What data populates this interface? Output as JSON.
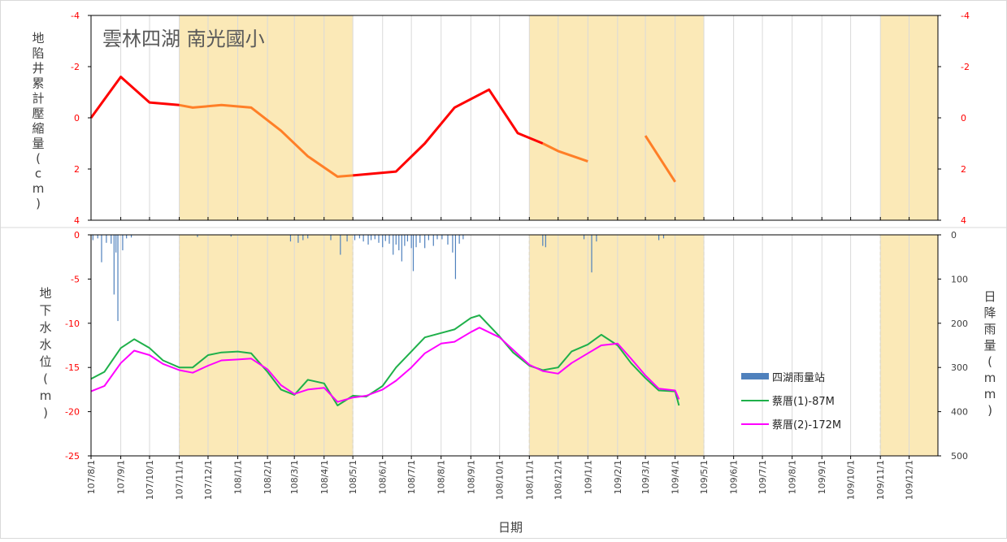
{
  "colors": {
    "shade": "#fbe9b7",
    "grid": "#d9d9d9",
    "axis": "#000000",
    "red_tick": "#ff0000",
    "subsidence_red": "#ff0000",
    "subsidence_orange": "#ff7f27",
    "rain": "#4f81bd",
    "well1": "#1fb04a",
    "well2": "#ff00ff"
  },
  "chart_data": [
    {
      "type": "line",
      "title": "雲林四湖 南光國小",
      "ylabel": "地陷井累計壓縮量(cm)",
      "ylim": [
        4,
        -4
      ],
      "yticks": [
        "-4",
        "-2",
        "0",
        "2",
        "4"
      ],
      "y2ticks": [
        "-4",
        "-2",
        "0",
        "2",
        "4"
      ],
      "shaded_periods": [
        [
          "107/11/1",
          "108/5/1"
        ],
        [
          "108/11/1",
          "109/5/1"
        ],
        [
          "109/11/1",
          "109/12/31"
        ]
      ],
      "series": [
        {
          "color": "red",
          "segments": [
            [
              [
                "107/8/1",
                0.0
              ],
              [
                "107/9/1",
                -1.6
              ],
              [
                "107/10/1",
                -0.6
              ],
              [
                "107/11/1",
                -0.5
              ]
            ],
            [
              [
                "108/5/1",
                2.25
              ],
              [
                "108/6/15",
                2.1
              ],
              [
                "108/7/15",
                1.0
              ],
              [
                "108/8/15",
                -0.4
              ],
              [
                "108/9/20",
                -1.1
              ],
              [
                "108/10/20",
                0.6
              ],
              [
                "108/11/15",
                1.0
              ]
            ]
          ]
        },
        {
          "color": "orange",
          "segments": [
            [
              [
                "107/11/1",
                -0.5
              ],
              [
                "107/11/15",
                -0.4
              ],
              [
                "107/12/15",
                -0.5
              ],
              [
                "108/1/15",
                -0.4
              ],
              [
                "108/2/15",
                0.5
              ],
              [
                "108/3/15",
                1.5
              ],
              [
                "108/4/15",
                2.3
              ],
              [
                "108/5/1",
                2.25
              ]
            ],
            [
              [
                "108/11/15",
                1.0
              ],
              [
                "108/12/1",
                1.3
              ],
              [
                "109/1/1",
                1.7
              ]
            ],
            [
              [
                "109/3/1",
                0.7
              ],
              [
                "109/4/1",
                2.5
              ]
            ]
          ]
        }
      ]
    },
    {
      "type": "line",
      "xlabel": "日期",
      "ylabel": "地下水水位(m)",
      "y2label": "日降雨量(mm)",
      "ylim": [
        -25,
        0
      ],
      "y2lim": [
        0,
        500
      ],
      "yticks": [
        "0",
        "-5",
        "-10",
        "-15",
        "-20",
        "-25"
      ],
      "y2ticks": [
        "0",
        "100",
        "200",
        "300",
        "400",
        "500"
      ],
      "x_ticks": [
        "107/8/1",
        "107/9/1",
        "107/10/1",
        "107/11/1",
        "107/12/1",
        "108/1/1",
        "108/2/1",
        "108/3/1",
        "108/4/1",
        "108/5/1",
        "108/6/1",
        "108/7/1",
        "108/8/1",
        "108/9/1",
        "108/10/1",
        "108/11/1",
        "108/12/1",
        "109/1/1",
        "109/2/1",
        "109/3/1",
        "109/4/1",
        "109/5/1",
        "109/6/1",
        "109/7/1",
        "109/8/1",
        "109/9/1",
        "109/10/1",
        "109/11/1",
        "109/12/1"
      ],
      "legend": {
        "placement": "right",
        "entries": [
          "四湖雨量站",
          "蔡厝(1)-87M",
          "蔡厝(2)-172M"
        ]
      },
      "series": [
        {
          "name": "四湖雨量站",
          "kind": "bar",
          "axis": "right",
          "points": [
            [
              "107/8/3",
              12
            ],
            [
              "107/8/8",
              8
            ],
            [
              "107/8/12",
              62
            ],
            [
              "107/8/17",
              18
            ],
            [
              "107/8/22",
              20
            ],
            [
              "107/8/25",
              135
            ],
            [
              "107/8/27",
              40
            ],
            [
              "107/8/29",
              195
            ],
            [
              "107/9/3",
              35
            ],
            [
              "107/9/7",
              8
            ],
            [
              "107/9/12",
              6
            ],
            [
              "107/11/20",
              5
            ],
            [
              "107/12/25",
              4
            ],
            [
              "108/2/25",
              15
            ],
            [
              "108/3/5",
              18
            ],
            [
              "108/3/10",
              12
            ],
            [
              "108/3/15",
              8
            ],
            [
              "108/4/8",
              12
            ],
            [
              "108/4/18",
              45
            ],
            [
              "108/4/25",
              15
            ],
            [
              "108/5/3",
              12
            ],
            [
              "108/5/8",
              8
            ],
            [
              "108/5/12",
              15
            ],
            [
              "108/5/17",
              22
            ],
            [
              "108/5/20",
              12
            ],
            [
              "108/5/24",
              10
            ],
            [
              "108/5/28",
              18
            ],
            [
              "108/6/1",
              28
            ],
            [
              "108/6/4",
              14
            ],
            [
              "108/6/8",
              20
            ],
            [
              "108/6/12",
              45
            ],
            [
              "108/6/15",
              22
            ],
            [
              "108/6/18",
              35
            ],
            [
              "108/6/21",
              60
            ],
            [
              "108/6/24",
              25
            ],
            [
              "108/6/27",
              15
            ],
            [
              "108/7/1",
              30
            ],
            [
              "108/7/3",
              82
            ],
            [
              "108/7/6",
              28
            ],
            [
              "108/7/10",
              18
            ],
            [
              "108/7/15",
              30
            ],
            [
              "108/7/19",
              12
            ],
            [
              "108/7/24",
              25
            ],
            [
              "108/7/28",
              10
            ],
            [
              "108/8/2",
              10
            ],
            [
              "108/8/8",
              22
            ],
            [
              "108/8/13",
              40
            ],
            [
              "108/8/16",
              100
            ],
            [
              "108/8/20",
              20
            ],
            [
              "108/8/24",
              10
            ],
            [
              "108/11/15",
              25
            ],
            [
              "108/11/18",
              28
            ],
            [
              "108/12/28",
              10
            ],
            [
              "109/1/5",
              85
            ],
            [
              "109/1/10",
              15
            ],
            [
              "109/3/15",
              12
            ],
            [
              "109/3/20",
              8
            ]
          ]
        },
        {
          "name": "蔡厝(1)-87M",
          "axis": "left",
          "points": [
            [
              "107/8/1",
              -16.3
            ],
            [
              "107/8/15",
              -15.5
            ],
            [
              "107/9/1",
              -12.8
            ],
            [
              "107/9/15",
              -11.8
            ],
            [
              "107/10/1",
              -12.8
            ],
            [
              "107/10/15",
              -14.2
            ],
            [
              "107/11/1",
              -15.0
            ],
            [
              "107/11/15",
              -15.0
            ],
            [
              "107/12/1",
              -13.6
            ],
            [
              "107/12/15",
              -13.3
            ],
            [
              "108/1/1",
              -13.2
            ],
            [
              "108/1/15",
              -13.4
            ],
            [
              "108/2/1",
              -15.5
            ],
            [
              "108/2/15",
              -17.5
            ],
            [
              "108/3/1",
              -18.1
            ],
            [
              "108/3/15",
              -16.4
            ],
            [
              "108/4/1",
              -16.8
            ],
            [
              "108/4/15",
              -19.3
            ],
            [
              "108/5/1",
              -18.2
            ],
            [
              "108/5/15",
              -18.3
            ],
            [
              "108/6/1",
              -17.1
            ],
            [
              "108/6/15",
              -15.0
            ],
            [
              "108/7/1",
              -13.2
            ],
            [
              "108/7/15",
              -11.6
            ],
            [
              "108/8/1",
              -11.1
            ],
            [
              "108/8/15",
              -10.7
            ],
            [
              "108/9/1",
              -9.4
            ],
            [
              "108/9/10",
              -9.1
            ],
            [
              "108/10/1",
              -11.5
            ],
            [
              "108/10/15",
              -13.3
            ],
            [
              "108/11/1",
              -14.8
            ],
            [
              "108/11/15",
              -15.3
            ],
            [
              "108/12/1",
              -15.0
            ],
            [
              "108/12/15",
              -13.2
            ],
            [
              "109/1/1",
              -12.4
            ],
            [
              "109/1/15",
              -11.3
            ],
            [
              "109/2/1",
              -12.5
            ],
            [
              "109/2/15",
              -14.5
            ],
            [
              "109/3/1",
              -16.2
            ],
            [
              "109/3/15",
              -17.6
            ],
            [
              "109/4/1",
              -17.7
            ],
            [
              "109/4/5",
              -19.3
            ]
          ]
        },
        {
          "name": "蔡厝(2)-172M",
          "axis": "left",
          "points": [
            [
              "107/8/1",
              -17.7
            ],
            [
              "107/8/15",
              -17.1
            ],
            [
              "107/9/1",
              -14.5
            ],
            [
              "107/9/15",
              -13.1
            ],
            [
              "107/10/1",
              -13.6
            ],
            [
              "107/10/15",
              -14.6
            ],
            [
              "107/11/1",
              -15.3
            ],
            [
              "107/11/15",
              -15.6
            ],
            [
              "107/12/1",
              -14.8
            ],
            [
              "107/12/15",
              -14.2
            ],
            [
              "108/1/1",
              -14.1
            ],
            [
              "108/1/15",
              -14.0
            ],
            [
              "108/2/1",
              -15.2
            ],
            [
              "108/2/15",
              -17.0
            ],
            [
              "108/3/1",
              -18.0
            ],
            [
              "108/3/15",
              -17.5
            ],
            [
              "108/4/1",
              -17.3
            ],
            [
              "108/4/15",
              -18.9
            ],
            [
              "108/5/1",
              -18.4
            ],
            [
              "108/5/15",
              -18.2
            ],
            [
              "108/6/1",
              -17.5
            ],
            [
              "108/6/15",
              -16.5
            ],
            [
              "108/7/1",
              -15.0
            ],
            [
              "108/7/15",
              -13.4
            ],
            [
              "108/8/1",
              -12.3
            ],
            [
              "108/8/15",
              -12.1
            ],
            [
              "108/9/1",
              -11.0
            ],
            [
              "108/9/10",
              -10.5
            ],
            [
              "108/10/1",
              -11.6
            ],
            [
              "108/10/15",
              -13.0
            ],
            [
              "108/11/1",
              -14.7
            ],
            [
              "108/11/15",
              -15.4
            ],
            [
              "108/12/1",
              -15.7
            ],
            [
              "108/12/15",
              -14.5
            ],
            [
              "109/1/1",
              -13.4
            ],
            [
              "109/1/15",
              -12.5
            ],
            [
              "109/2/1",
              -12.3
            ],
            [
              "109/2/15",
              -14.0
            ],
            [
              "109/3/1",
              -15.9
            ],
            [
              "109/3/15",
              -17.4
            ],
            [
              "109/4/1",
              -17.6
            ],
            [
              "109/4/5",
              -18.6
            ]
          ]
        }
      ]
    }
  ]
}
